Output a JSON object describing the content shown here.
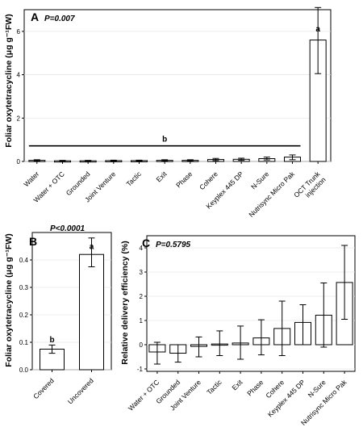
{
  "chart_data": [
    {
      "panel": "A",
      "type": "bar",
      "pvalue": "P=0.007",
      "ylabel": "Foliar oxytetracycline (μg g⁻¹FW)",
      "xlabel": "",
      "ylim": [
        0,
        7
      ],
      "yticks": [
        0,
        2,
        4,
        6
      ],
      "grid": true,
      "categories": [
        "Water",
        "Water + OTC",
        "Grounded",
        "Joint Venture",
        "Tactic",
        "Exit",
        "Phase",
        "Cohere",
        "Keyplex 445 DP",
        "N-Sure",
        "Nutrisync Micro Pak",
        "OCT Trunk injection"
      ],
      "values": [
        0.05,
        0.03,
        0.03,
        0.04,
        0.04,
        0.05,
        0.05,
        0.09,
        0.1,
        0.13,
        0.2,
        5.6
      ],
      "err_low": [
        0.02,
        0.01,
        0.01,
        0.02,
        0.02,
        0.02,
        0.02,
        0.04,
        0.05,
        0.07,
        0.08,
        4.05
      ],
      "err_high": [
        0.08,
        0.05,
        0.05,
        0.06,
        0.06,
        0.08,
        0.08,
        0.14,
        0.15,
        0.2,
        0.3,
        7.1
      ],
      "letters": [
        {
          "text": "b",
          "group": "Water–Nutrisync Micro Pak",
          "value": 0.72
        },
        {
          "text": "a",
          "category": "OCT Trunk injection",
          "value": 6.0
        }
      ]
    },
    {
      "panel": "B",
      "type": "bar",
      "pvalue": "P<0.0001",
      "ylabel": "Foliar oxytetracycline (μg g⁻¹FW)",
      "xlabel": "",
      "ylim": [
        0,
        0.5
      ],
      "yticks": [
        0.0,
        0.1,
        0.2,
        0.3,
        0.4
      ],
      "grid": true,
      "categories": [
        "Covered",
        "Uncovered"
      ],
      "values": [
        0.075,
        0.42
      ],
      "err_low": [
        0.06,
        0.375
      ],
      "err_high": [
        0.09,
        0.48
      ],
      "letters": [
        {
          "text": "b",
          "category": "Covered",
          "value": 0.1
        },
        {
          "text": "a",
          "category": "Uncovered",
          "value": 0.44
        }
      ]
    },
    {
      "panel": "C",
      "type": "bar",
      "pvalue": "P=0.5795",
      "ylabel": "Relative delivery efficiency (%)",
      "xlabel": "",
      "ylim": [
        -1.1,
        4.5
      ],
      "yticks": [
        -1,
        0,
        1,
        2,
        3,
        4
      ],
      "grid": true,
      "categories": [
        "Water + OTC",
        "Grounded",
        "Joint Venture",
        "Tactic",
        "Exit",
        "Phase",
        "Cohere",
        "Keyplex 445 DP",
        "N-Sure",
        "Nutrisync Micro Pak"
      ],
      "values": [
        -0.3,
        -0.35,
        -0.07,
        0.03,
        0.07,
        0.28,
        0.67,
        0.92,
        1.22,
        2.57
      ],
      "err_low": [
        -0.8,
        -0.72,
        -0.5,
        -0.45,
        -0.6,
        -0.42,
        -0.45,
        0.0,
        -0.1,
        1.05
      ],
      "err_high": [
        0.1,
        0.0,
        0.32,
        0.57,
        0.77,
        1.03,
        1.8,
        1.65,
        2.55,
        4.1
      ]
    }
  ]
}
